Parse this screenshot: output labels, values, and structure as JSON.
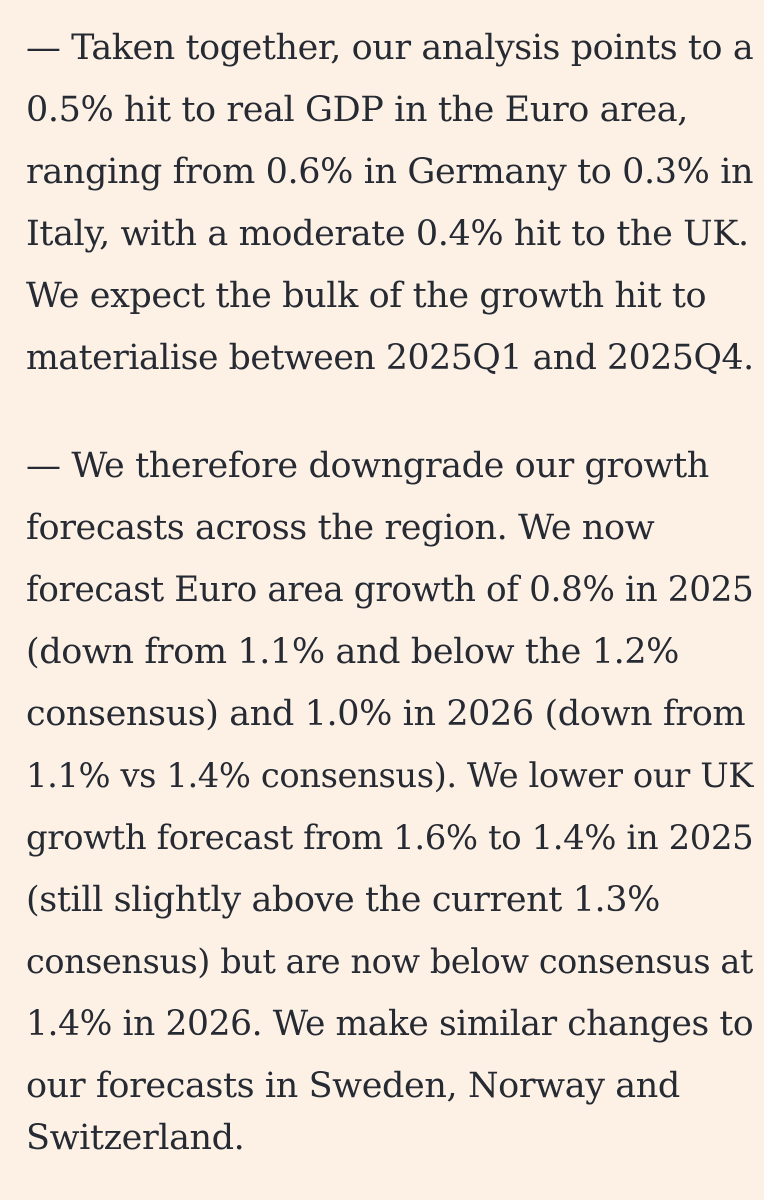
{
  "article": {
    "paragraphs": [
      {
        "lines": [
          "— Taken together, our analysis points to a",
          "0.5% hit to real GDP in the Euro area,",
          "ranging from 0.6% in Germany to 0.3% in",
          "Italy, with a moderate 0.4% hit to the UK.",
          "We expect the bulk of the growth hit to",
          "materialise between 2025Q1 and 2025Q4."
        ]
      },
      {
        "lines": [
          "— We therefore downgrade our growth",
          "forecasts across the region. We now",
          "forecast Euro area growth of 0.8% in 2025",
          "(down from 1.1% and below the 1.2%",
          "consensus) and 1.0% in 2026 (down from",
          "1.1% vs 1.4% consensus). We lower our UK",
          "growth forecast from 1.6% to 1.4% in 2025",
          "(still slightly above the current 1.3%",
          "consensus) but are now below consensus at",
          "1.4% in 2026. We make similar changes to",
          "our forecasts in Sweden, Norway and",
          "Switzerland."
        ]
      }
    ]
  }
}
